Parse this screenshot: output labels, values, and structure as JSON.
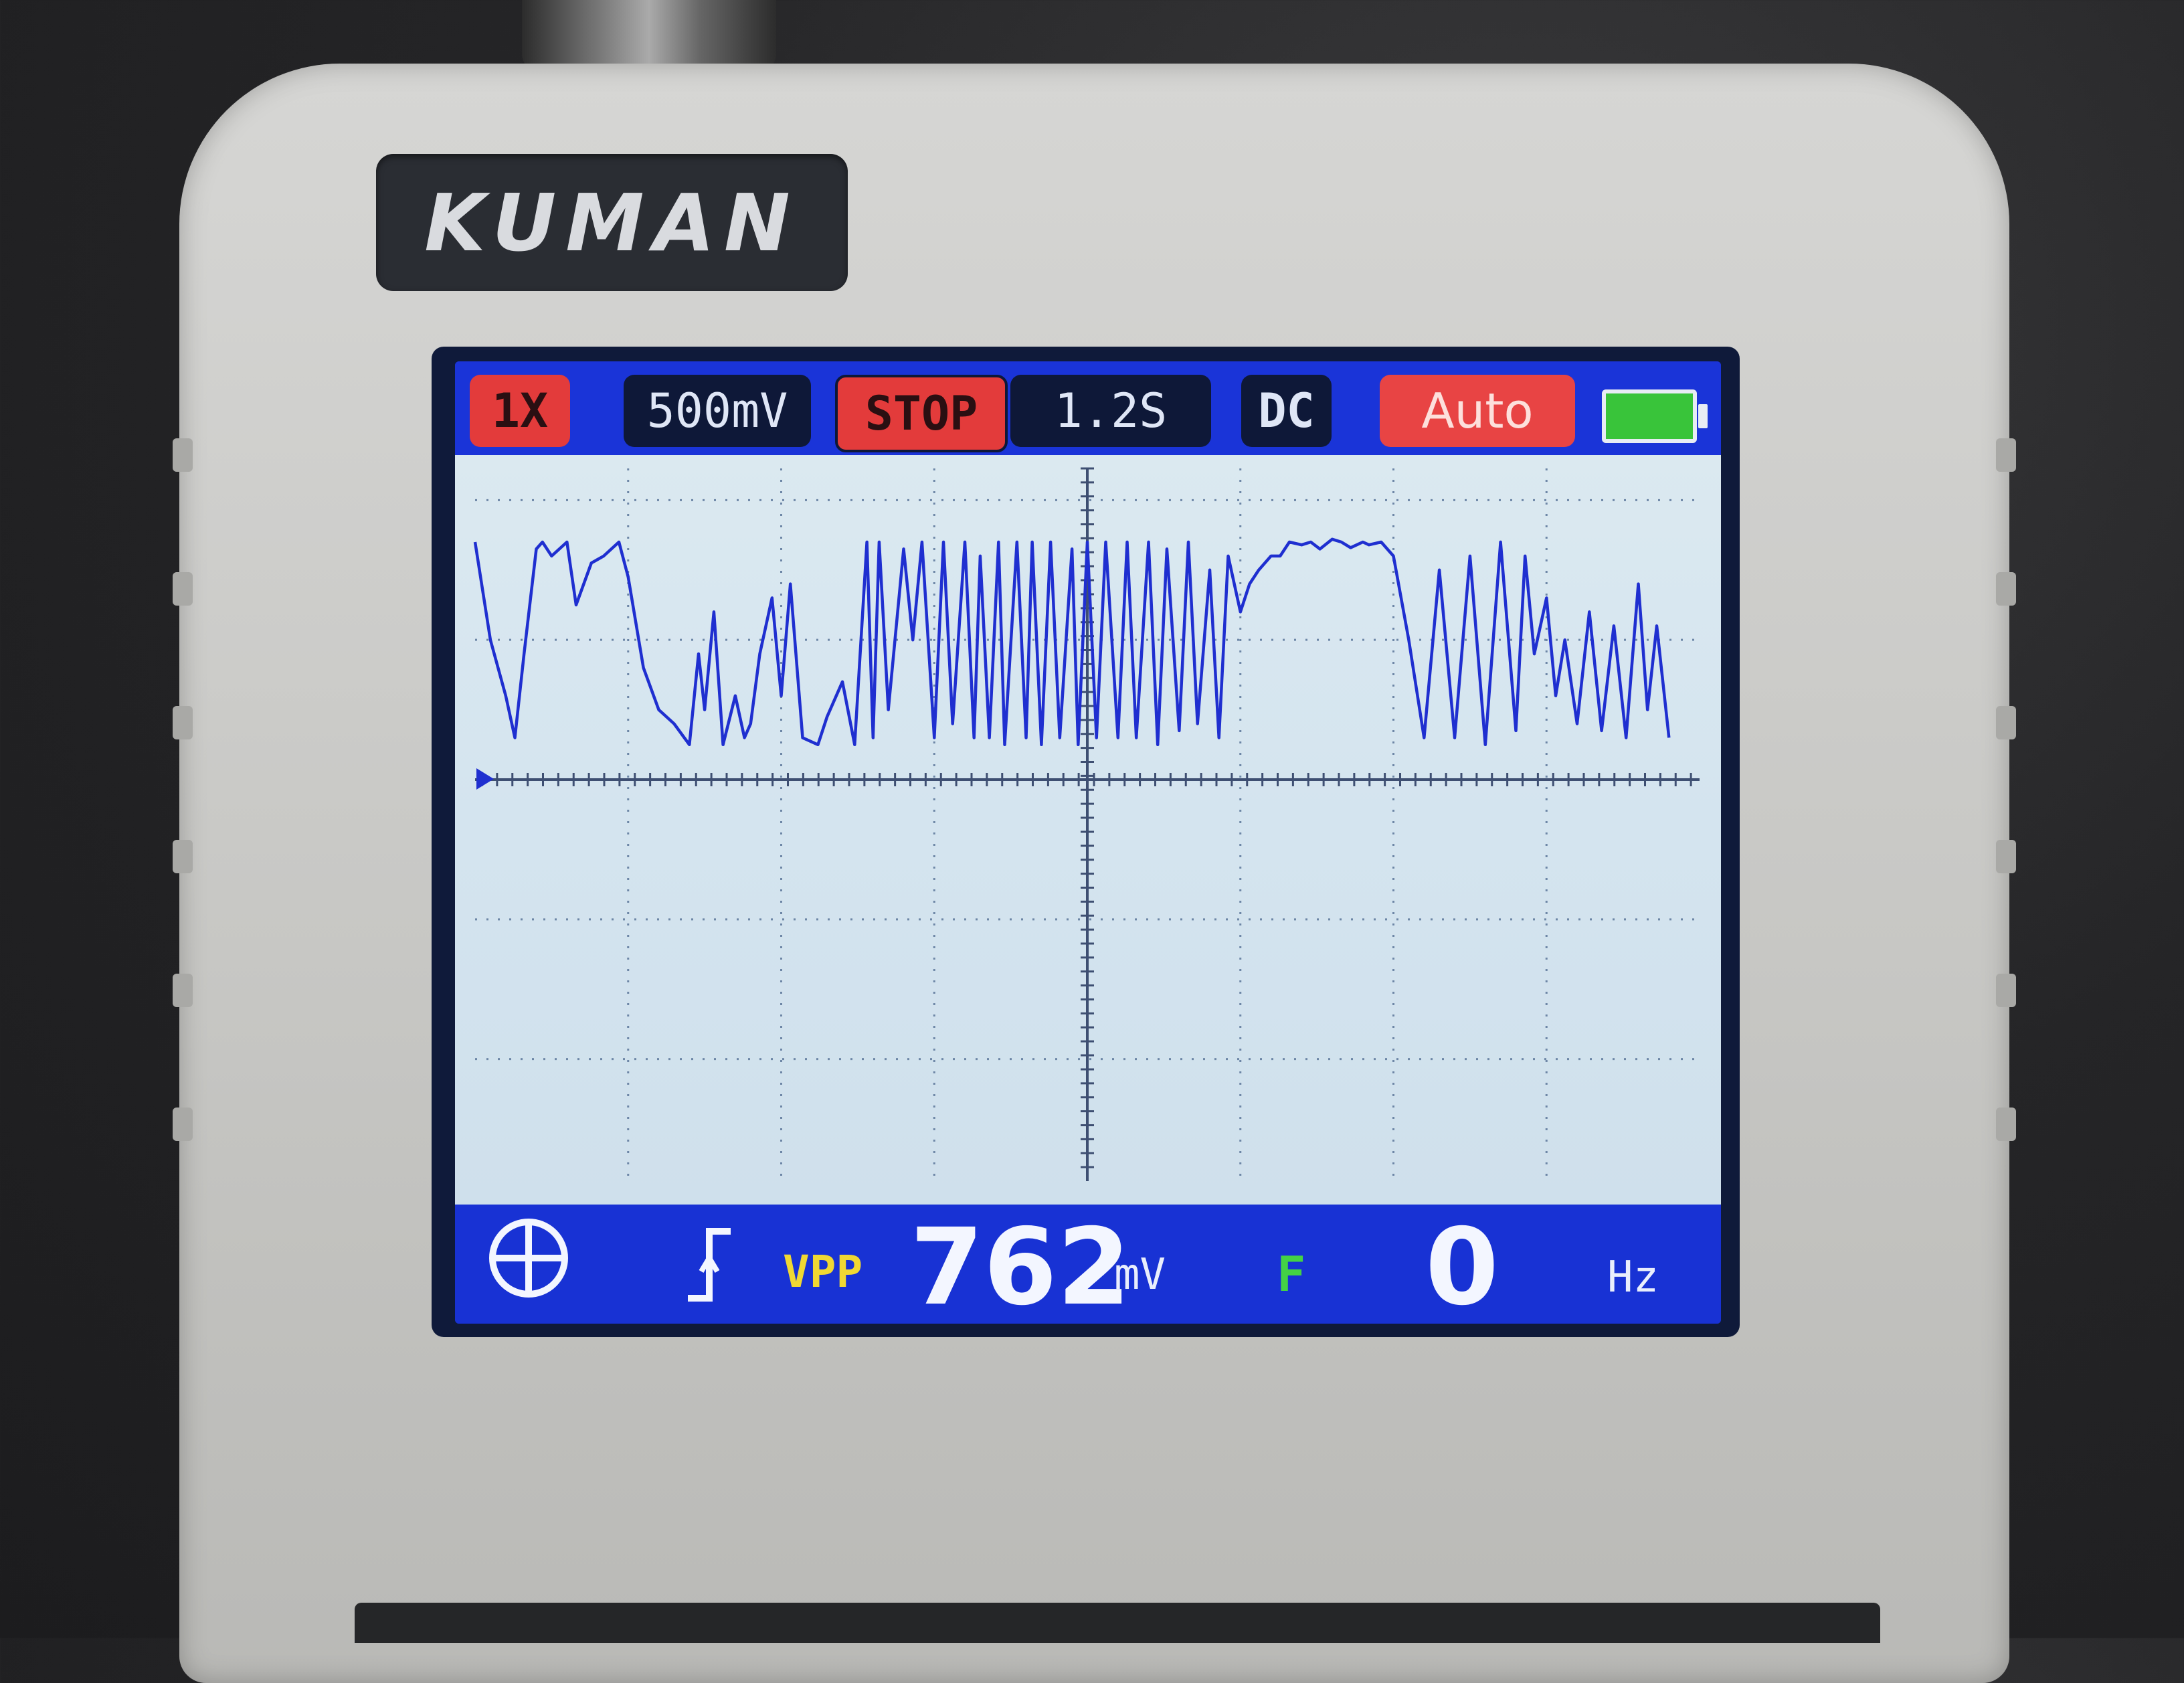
{
  "device": {
    "brand": "KUMAN"
  },
  "status_bar": {
    "probe": "1X",
    "volts_per_div": "500mV",
    "run_state": "STOP",
    "time_per_div": "1.2S",
    "coupling": "DC",
    "trigger_mode": "Auto",
    "battery_icon": "battery-full-icon"
  },
  "measurements": {
    "vpp_label": "VPP",
    "vpp_value": "762",
    "vpp_unit": "mV",
    "freq_label": "F",
    "freq_value": "0",
    "freq_unit": "Hz"
  },
  "colors": {
    "screen_bg": "#1734d6",
    "trace": "#1f2fd0",
    "label_red": "#e33b3b",
    "vpp_yellow": "#f0d833",
    "freq_green": "#44d245",
    "battery_green": "#39c43a"
  },
  "chart_data": {
    "type": "line",
    "title": "",
    "xlabel": "",
    "ylabel": "",
    "x_divisions": 8,
    "y_divisions": 6,
    "y_units": "divisions above ground marker",
    "ylim": [
      -2.9,
      2.2
    ],
    "grid": true,
    "series": [
      {
        "x": [
          0,
          0.1,
          0.2,
          0.26,
          0.32,
          0.4,
          0.44,
          0.5,
          0.6,
          0.66,
          0.76,
          0.84,
          0.94,
          1.0,
          1.1,
          1.2,
          1.3,
          1.4,
          1.46,
          1.5,
          1.56,
          1.62,
          1.7,
          1.76,
          1.8,
          1.86,
          1.94,
          2.0,
          2.06,
          2.14,
          2.24,
          2.3,
          2.4,
          2.48,
          2.56,
          2.6,
          2.64,
          2.7,
          2.8,
          2.86,
          2.92,
          3.0,
          3.06,
          3.12,
          3.2,
          3.26,
          3.3,
          3.36,
          3.42,
          3.46,
          3.54,
          3.6,
          3.64,
          3.7,
          3.76,
          3.82,
          3.9,
          3.94,
          4.0,
          4.06,
          4.12,
          4.2,
          4.26,
          4.32,
          4.4,
          4.46,
          4.52,
          4.6,
          4.66,
          4.72,
          4.8,
          4.86,
          4.92,
          5.0,
          5.06,
          5.12,
          5.2,
          5.26,
          5.32,
          5.4,
          5.46,
          5.52,
          5.6,
          5.66,
          5.72,
          5.8,
          5.84,
          5.92,
          6.0,
          6.1,
          6.2,
          6.3,
          6.4,
          6.5,
          6.6,
          6.7,
          6.8,
          6.86,
          6.92,
          7.0,
          7.06,
          7.12,
          7.2,
          7.28,
          7.36,
          7.44,
          7.52,
          7.6,
          7.66,
          7.72,
          7.8
        ],
        "y": [
          1.7,
          1.0,
          0.6,
          0.3,
          0.9,
          1.65,
          1.7,
          1.6,
          1.7,
          1.25,
          1.55,
          1.6,
          1.7,
          1.45,
          0.8,
          0.5,
          0.4,
          0.25,
          0.9,
          0.5,
          1.2,
          0.25,
          0.6,
          0.3,
          0.4,
          0.9,
          1.3,
          0.6,
          1.4,
          0.3,
          0.25,
          0.45,
          0.7,
          0.25,
          1.7,
          0.3,
          1.7,
          0.5,
          1.65,
          1.0,
          1.7,
          0.3,
          1.7,
          0.4,
          1.7,
          0.3,
          1.6,
          0.3,
          1.7,
          0.25,
          1.7,
          0.3,
          1.7,
          0.25,
          1.7,
          0.3,
          1.65,
          0.25,
          1.7,
          0.3,
          1.7,
          0.3,
          1.7,
          0.3,
          1.7,
          0.25,
          1.65,
          0.35,
          1.7,
          0.4,
          1.5,
          0.3,
          1.6,
          1.2,
          1.4,
          1.5,
          1.6,
          1.6,
          1.7,
          1.68,
          1.7,
          1.65,
          1.72,
          1.7,
          1.66,
          1.7,
          1.68,
          1.7,
          1.6,
          1.0,
          0.3,
          1.5,
          0.3,
          1.6,
          0.25,
          1.7,
          0.35,
          1.6,
          0.9,
          1.3,
          0.6,
          1.0,
          0.4,
          1.2,
          0.35,
          1.1,
          0.3,
          1.4,
          0.5,
          1.1,
          0.3
        ]
      }
    ]
  }
}
